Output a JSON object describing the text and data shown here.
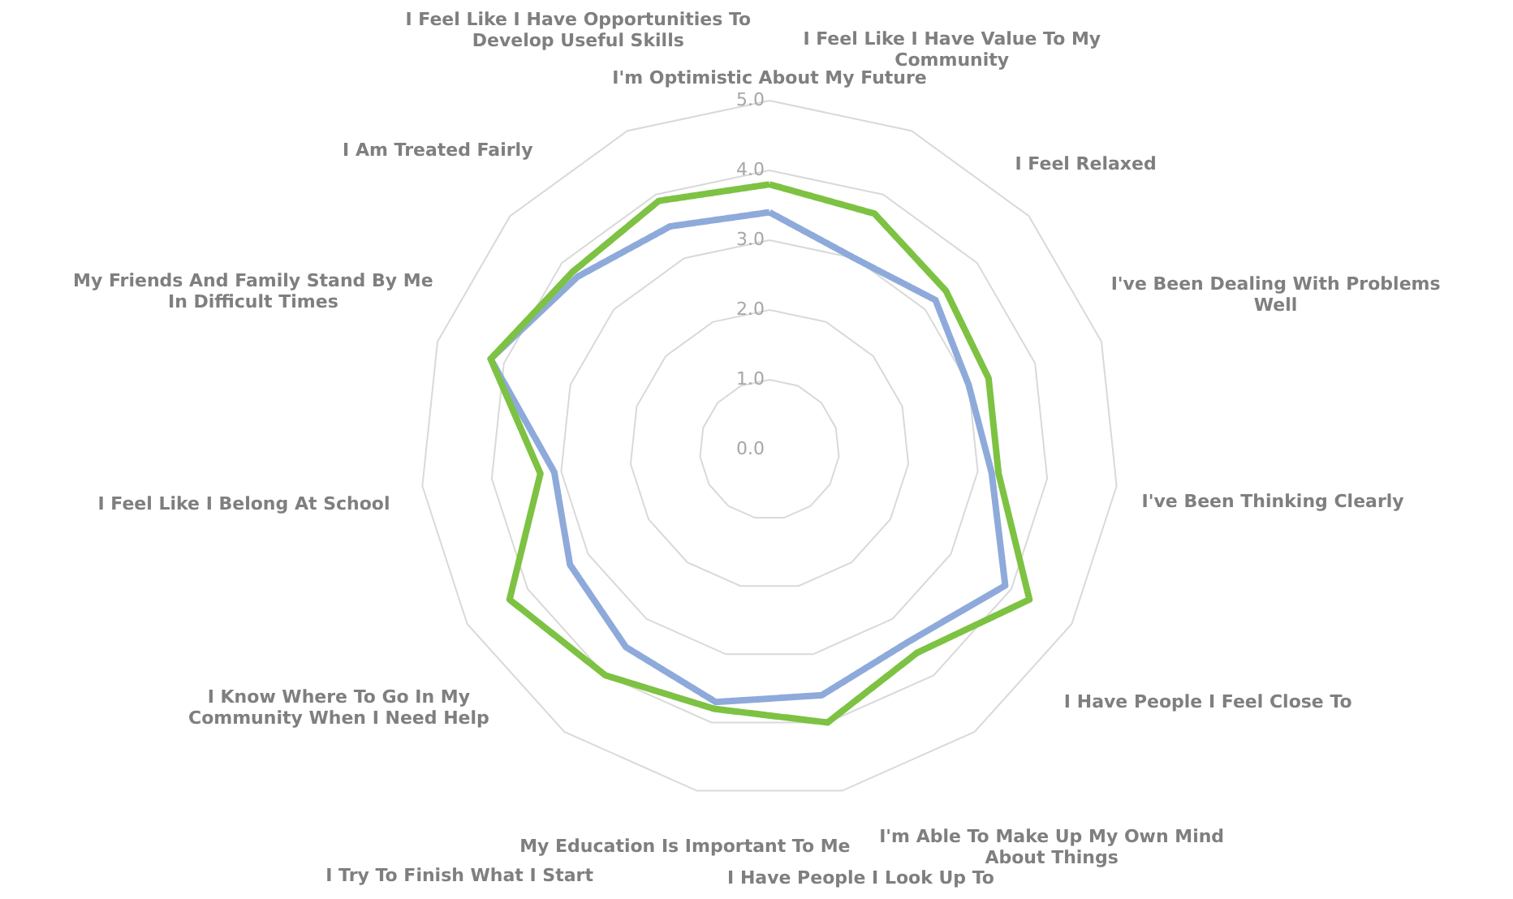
{
  "chart_data": {
    "type": "radar",
    "categories": [
      "I'm Optimistic About My Future",
      "I Feel Like I Have Value To My\nCommunity",
      "I Feel Relaxed",
      "I've Been Dealing With Problems\nWell",
      "I've Been Thinking Clearly",
      "I Have People I Feel Close To",
      "I'm Able To Make Up My Own Mind\nAbout Things",
      "I Have People I Look Up To",
      "My Education Is Important To Me",
      "I Try To Finish What I Start",
      "I Know Where To Go In My\nCommunity When I Need Help",
      "I Feel Like I Belong At School",
      "My Friends And Family Stand By Me\nIn Difficult Times",
      "I Am Treated Fairly",
      "I Feel Like I Have Opportunities To\nDevelop Useful Skills"
    ],
    "series": [
      {
        "color": "#8eaadb",
        "values": [
          3.4,
          3.0,
          3.2,
          3.0,
          3.2,
          3.9,
          3.4,
          3.6,
          3.7,
          3.5,
          3.3,
          3.1,
          4.2,
          3.7,
          3.5
        ]
      },
      {
        "color": "#7dc242",
        "values": [
          3.8,
          3.7,
          3.4,
          3.3,
          3.3,
          4.3,
          3.6,
          4.0,
          3.8,
          4.0,
          4.3,
          3.3,
          4.2,
          3.8,
          3.9
        ]
      }
    ],
    "ylim": [
      0,
      5
    ],
    "yticks": [
      {
        "value": 0,
        "label": "0.0"
      },
      {
        "value": 1,
        "label": "1.0"
      },
      {
        "value": 2,
        "label": "2.0"
      },
      {
        "value": 3,
        "label": "3.0"
      },
      {
        "value": 4,
        "label": "4.0"
      },
      {
        "value": 5,
        "label": "5.0"
      }
    ],
    "grid": true,
    "marker": "none",
    "line_style": "solid"
  }
}
